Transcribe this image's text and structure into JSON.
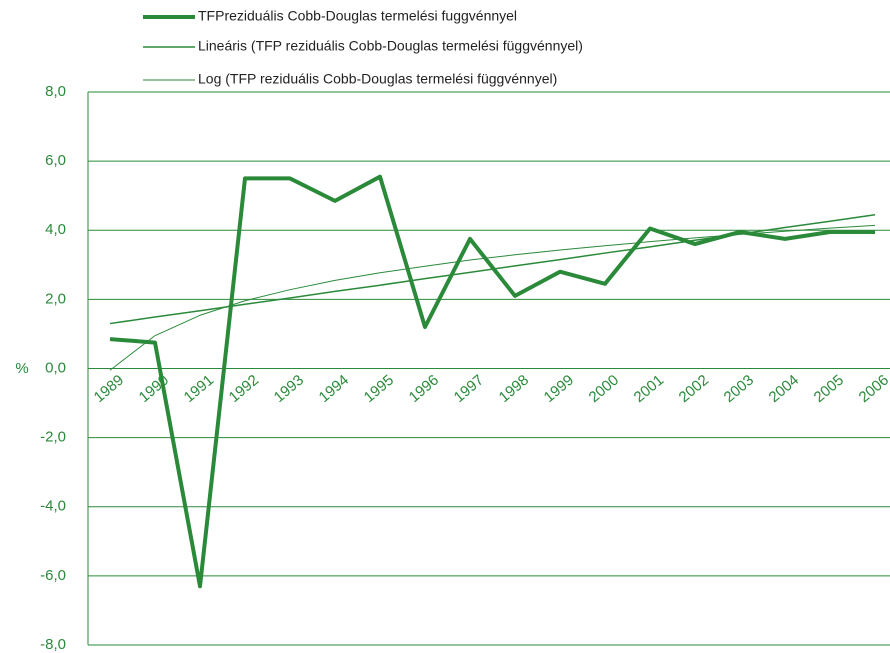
{
  "chart_data": {
    "type": "line",
    "y_label": "%",
    "categories": [
      "1989",
      "1990",
      "1991",
      "1992",
      "1993",
      "1994",
      "1995",
      "1996",
      "1997",
      "1998",
      "1999",
      "2000",
      "2001",
      "2002",
      "2003",
      "2004",
      "2005",
      "2006"
    ],
    "series": [
      {
        "name": "TFPreziduális Cobb-Douglas termelési fuggvénnyel",
        "color": "#2a8a3a",
        "width": 4,
        "values": [
          0.85,
          0.75,
          -6.3,
          5.5,
          5.5,
          4.85,
          5.55,
          1.2,
          3.75,
          2.1,
          2.8,
          2.45,
          4.05,
          3.6,
          3.95,
          3.75,
          3.95,
          3.95
        ]
      },
      {
        "name": "Lineáris (TFP reziduális Cobb-Douglas termelési függvénnyel)",
        "color": "#2a8a3a",
        "width": 1.5,
        "values": [
          1.3,
          1.49,
          1.67,
          1.86,
          2.04,
          2.23,
          2.41,
          2.6,
          2.78,
          2.97,
          3.15,
          3.34,
          3.52,
          3.71,
          3.89,
          4.08,
          4.26,
          4.45
        ]
      },
      {
        "name": "Log (TFP reziduális Cobb-Douglas termelési függvénnyel)",
        "color": "#2a8a3a",
        "width": 1,
        "values": [
          -0.05,
          0.95,
          1.54,
          1.96,
          2.28,
          2.55,
          2.77,
          2.96,
          3.14,
          3.29,
          3.43,
          3.55,
          3.67,
          3.78,
          3.88,
          3.97,
          4.06,
          4.14
        ]
      }
    ],
    "ylim": [
      -8,
      8
    ],
    "yticks": [
      {
        "value": -8,
        "label": "-8,0"
      },
      {
        "value": -6,
        "label": "-6,0"
      },
      {
        "value": -4,
        "label": "-4,0"
      },
      {
        "value": -2,
        "label": "-2,0"
      },
      {
        "value": 0,
        "label": "0,0"
      },
      {
        "value": 2,
        "label": "2,0"
      },
      {
        "value": 4,
        "label": "4,0"
      },
      {
        "value": 6,
        "label": "6,0"
      },
      {
        "value": 8,
        "label": "8,0"
      }
    ],
    "grid": true
  }
}
